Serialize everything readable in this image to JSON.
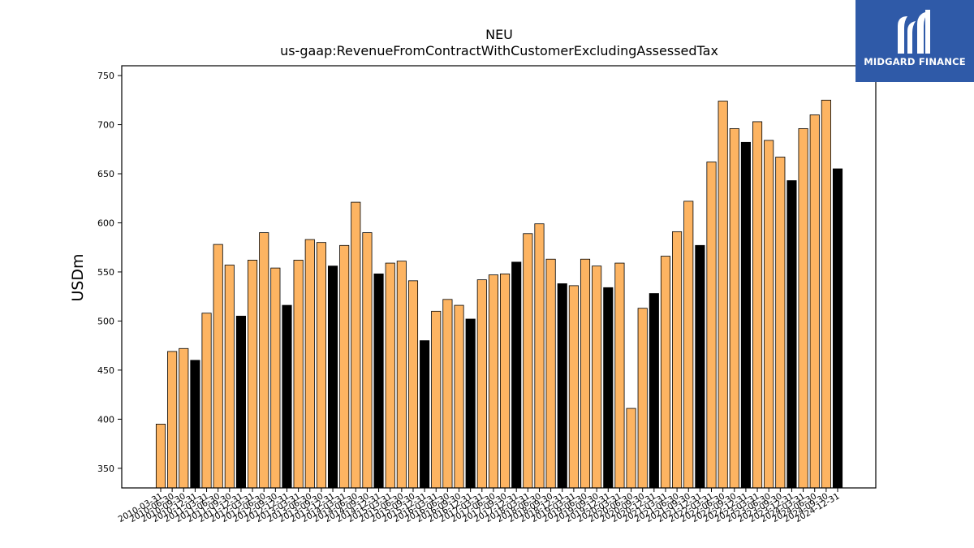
{
  "chart_data": {
    "type": "bar",
    "title": "NEU",
    "subtitle": "us-gaap:RevenueFromContractWithCustomerExcludingAssessedTax",
    "xlabel": "",
    "ylabel": "USDm",
    "ylim": [
      330,
      760
    ],
    "yticks": [
      350,
      400,
      450,
      500,
      550,
      600,
      650,
      700,
      750
    ],
    "grid": false,
    "colors": {
      "quarter": "#fdb462",
      "year_end": "#000000",
      "edge": "#000000"
    },
    "categories": [
      "2010-03-31",
      "2010-06-30",
      "2010-09-30",
      "2010-12-31",
      "2011-03-31",
      "2011-06-30",
      "2011-09-30",
      "2011-12-31",
      "2012-03-31",
      "2012-06-30",
      "2012-09-30",
      "2012-12-31",
      "2013-03-31",
      "2013-06-30",
      "2013-09-30",
      "2013-12-31",
      "2014-03-31",
      "2014-06-30",
      "2014-09-30",
      "2014-12-31",
      "2015-03-31",
      "2015-06-30",
      "2015-09-30",
      "2015-12-31",
      "2016-03-31",
      "2016-06-30",
      "2016-09-30",
      "2016-12-31",
      "2017-03-31",
      "2017-06-30",
      "2017-09-30",
      "2017-12-31",
      "2018-03-31",
      "2018-06-30",
      "2018-09-30",
      "2018-12-31",
      "2019-03-31",
      "2019-06-30",
      "2019-09-30",
      "2019-12-31",
      "2020-03-31",
      "2020-06-30",
      "2020-09-30",
      "2020-12-31",
      "2021-03-31",
      "2021-06-30",
      "2021-09-30",
      "2021-12-31",
      "2022-03-31",
      "2022-06-30",
      "2022-09-30",
      "2022-12-31",
      "2023-03-31",
      "2023-06-30",
      "2023-09-30",
      "2023-12-31",
      "2024-03-31",
      "2024-06-30",
      "2024-09-30",
      "2024-12-31"
    ],
    "values": [
      395,
      469,
      472,
      460,
      508,
      578,
      557,
      505,
      562,
      590,
      554,
      516,
      562,
      583,
      580,
      556,
      577,
      621,
      590,
      548,
      559,
      561,
      541,
      480,
      510,
      522,
      516,
      502,
      542,
      547,
      548,
      560,
      589,
      599,
      563,
      538,
      536,
      563,
      556,
      534,
      559,
      411,
      513,
      528,
      566,
      591,
      622,
      577,
      662,
      724,
      696,
      682,
      703,
      684,
      667,
      643,
      696,
      710,
      725,
      655
    ],
    "year_end": [
      false,
      false,
      false,
      true,
      false,
      false,
      false,
      true,
      false,
      false,
      false,
      true,
      false,
      false,
      false,
      true,
      false,
      false,
      false,
      true,
      false,
      false,
      false,
      true,
      false,
      false,
      false,
      true,
      false,
      false,
      false,
      true,
      false,
      false,
      false,
      true,
      false,
      false,
      false,
      true,
      false,
      false,
      false,
      true,
      false,
      false,
      false,
      true,
      false,
      false,
      false,
      true,
      false,
      false,
      false,
      true,
      false,
      false,
      false,
      true
    ]
  },
  "logo": {
    "text": "MIDGARD FINANCE"
  }
}
